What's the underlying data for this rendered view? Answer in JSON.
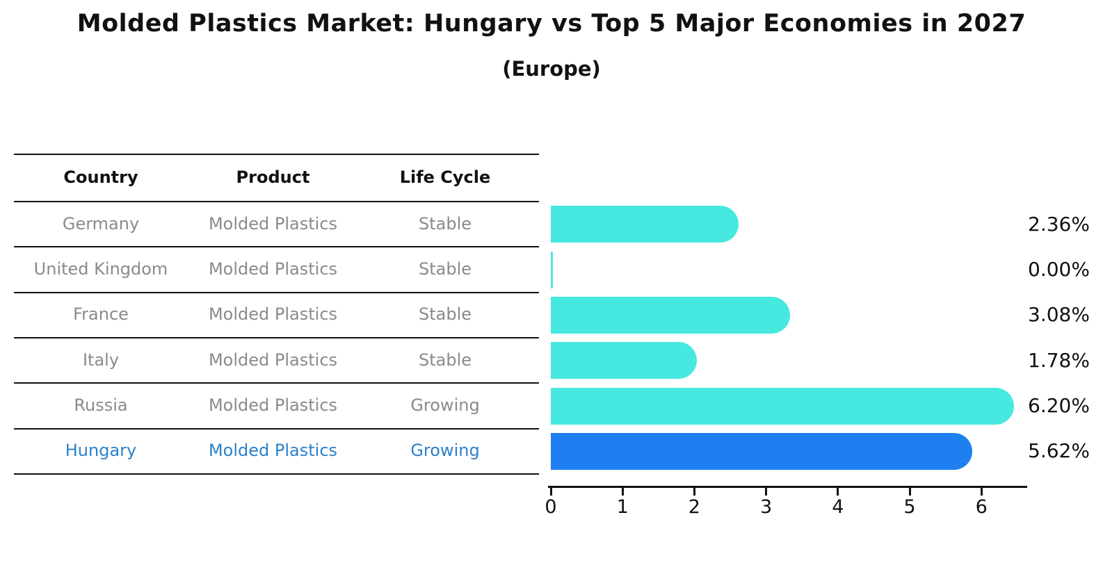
{
  "title": "Molded Plastics Market: Hungary vs Top 5 Major Economies in 2027",
  "subtitle": "(Europe)",
  "table": {
    "headers": [
      "Country",
      "Product",
      "Life Cycle"
    ],
    "rows": [
      {
        "country": "Germany",
        "product": "Molded Plastics",
        "life_cycle": "Stable",
        "highlight": false
      },
      {
        "country": "United Kingdom",
        "product": "Molded Plastics",
        "life_cycle": "Stable",
        "highlight": false
      },
      {
        "country": "France",
        "product": "Molded Plastics",
        "life_cycle": "Stable",
        "highlight": false
      },
      {
        "country": "Italy",
        "product": "Molded Plastics",
        "life_cycle": "Stable",
        "highlight": false
      },
      {
        "country": "Russia",
        "product": "Molded Plastics",
        "life_cycle": "Growing",
        "highlight": false
      },
      {
        "country": "Hungary",
        "product": "Molded Plastics",
        "life_cycle": "Growing",
        "highlight": true
      }
    ]
  },
  "chart_data": {
    "type": "bar",
    "orientation": "horizontal",
    "title": "Molded Plastics Market: Hungary vs Top 5 Major Economies in 2027",
    "subtitle": "(Europe)",
    "categories": [
      "Germany",
      "United Kingdom",
      "France",
      "Italy",
      "Russia",
      "Hungary"
    ],
    "values": [
      2.36,
      0.0,
      3.08,
      1.78,
      6.2,
      5.62
    ],
    "value_labels": [
      "2.36%",
      "0.00%",
      "3.08%",
      "1.78%",
      "6.20%",
      "5.62%"
    ],
    "x_ticks": [
      "0",
      "1",
      "2",
      "3",
      "4",
      "5",
      "6"
    ],
    "xlim": [
      0,
      6.6
    ],
    "grid": false,
    "legend": false,
    "highlight_index": 5
  },
  "colors": {
    "bar": "#47e8df",
    "highlight_bar": "#1e80f0",
    "highlight_text": "#2b80c9",
    "row_text": "#8a8a8a",
    "axis": "#111111"
  }
}
